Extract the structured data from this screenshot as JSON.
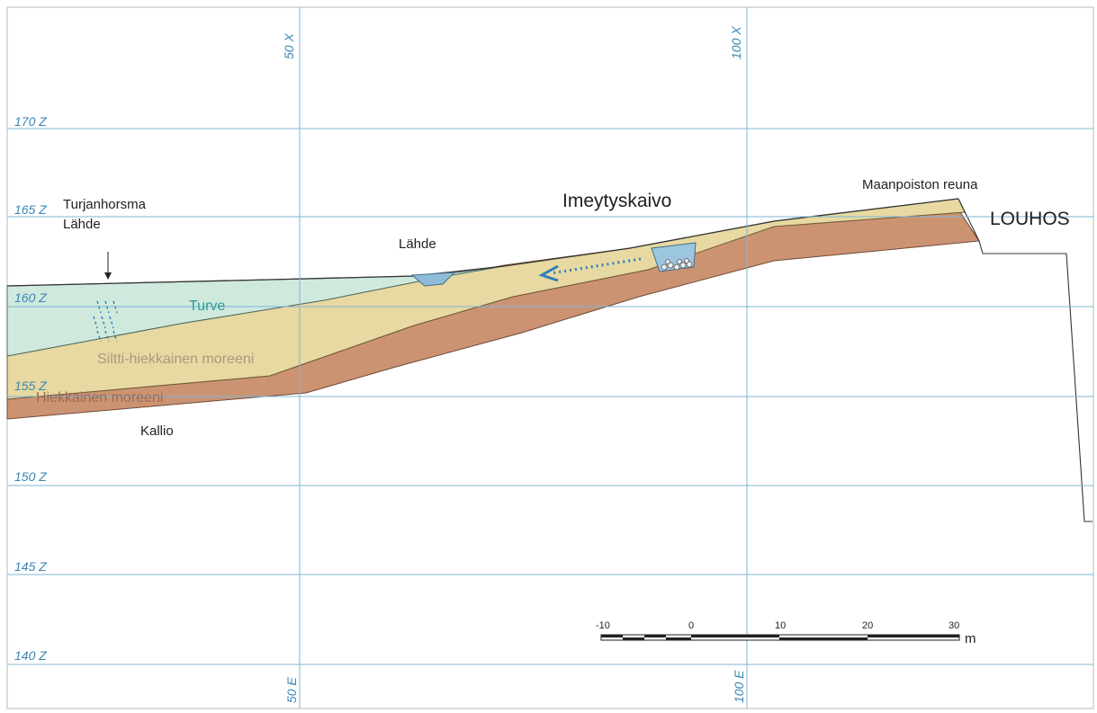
{
  "grid": {
    "z_labels": [
      "170 Z",
      "165 Z",
      "160 Z",
      "155 Z",
      "150 Z",
      "145 Z",
      "140 Z"
    ],
    "x_top_labels": [
      "50 X",
      "100 X"
    ],
    "x_bottom_labels": [
      "50 E",
      "100 E"
    ]
  },
  "labels": {
    "turjanhorsma": "Turjanhorsma",
    "lahde_left": "Lähde",
    "lahde_mid": "Lähde",
    "turve": "Turve",
    "siltti": "Siltti-hiekkainen moreeni",
    "hiekkainen": "Hiekkainen moreeni",
    "kallio": "Kallio",
    "imeytyskaivo": "Imeytyskaivo",
    "maanpoisto": "Maanpoiston reuna",
    "louhos": "LOUHOS"
  },
  "scale_bar": {
    "ticks": [
      "-10",
      "0",
      "10",
      "20",
      "30"
    ],
    "unit": "m"
  },
  "colors": {
    "turve": "#cfe9dd",
    "siltti": "#e7d9a1",
    "hiekkainen": "#cc9373",
    "water": "#8fbcd8",
    "grid": "#7fb6d6",
    "grid_label": "#3a86b4",
    "arrow": "#2f7fb8"
  }
}
